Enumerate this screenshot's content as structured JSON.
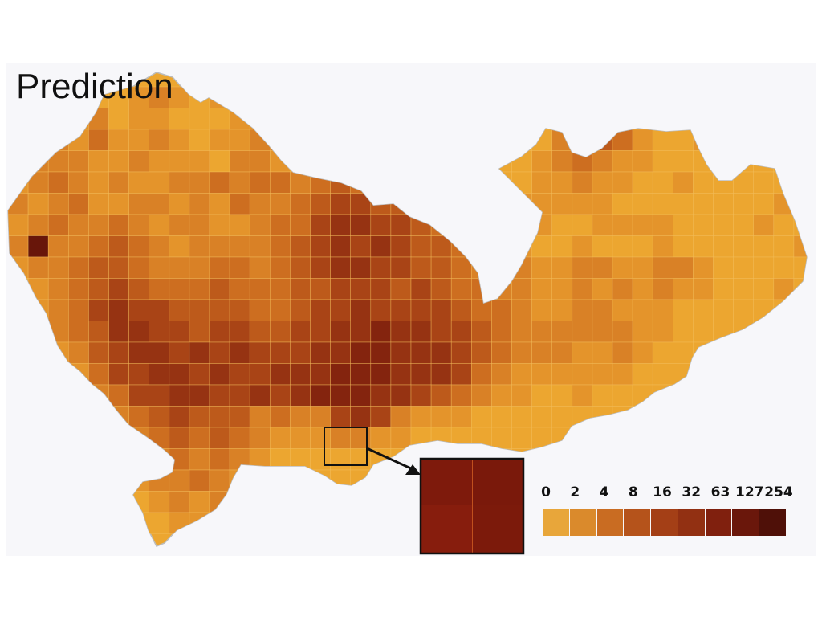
{
  "title": "Prediction",
  "colors": {
    "background": "#f7f7fa",
    "base": "#eca630",
    "grid": "#f0b94e",
    "coast": "#bcbcbc",
    "inset_border": "#111111"
  },
  "legend": {
    "labels": [
      "0",
      "2",
      "4",
      "8",
      "16",
      "32",
      "63",
      "127",
      "254"
    ],
    "colors": [
      "#e8a63a",
      "#da8a2c",
      "#c96c22",
      "#b5531b",
      "#a43f16",
      "#923012",
      "#80200e",
      "#6a170b",
      "#4f1008"
    ]
  },
  "inset": {
    "cells": [
      "#7e1a0c",
      "#7a190b",
      "#871d0d",
      "#7c1a0b"
    ]
  },
  "grid_levels": [
    [
      1,
      0,
      2,
      1,
      0,
      0,
      1,
      2,
      1,
      0,
      1,
      2,
      1,
      1,
      0,
      1,
      0,
      0,
      0,
      0,
      0,
      1,
      0,
      0,
      0,
      0,
      1,
      0,
      0,
      0,
      0,
      0,
      0,
      0,
      1,
      0,
      0,
      0,
      0,
      0,
      0
    ],
    [
      0,
      1,
      1,
      1,
      2,
      0,
      1,
      1,
      0,
      0,
      0,
      1,
      1,
      1,
      2,
      1,
      0,
      0,
      0,
      1,
      1,
      0,
      0,
      0,
      0,
      1,
      2,
      3,
      4,
      3,
      2,
      1,
      1,
      1,
      0,
      1,
      0,
      0,
      1,
      0,
      0
    ],
    [
      2,
      1,
      2,
      1,
      3,
      1,
      1,
      2,
      1,
      0,
      1,
      1,
      2,
      3,
      2,
      1,
      2,
      1,
      2,
      2,
      1,
      1,
      1,
      0,
      0,
      0,
      0,
      2,
      3,
      4,
      3,
      1,
      0,
      0,
      1,
      0,
      0,
      0,
      0,
      0,
      1
    ],
    [
      1,
      2,
      2,
      2,
      1,
      1,
      2,
      1,
      1,
      1,
      0,
      2,
      2,
      1,
      1,
      3,
      2,
      2,
      3,
      2,
      2,
      2,
      1,
      1,
      0,
      0,
      1,
      2,
      3,
      2,
      1,
      1,
      0,
      0,
      0,
      1,
      0,
      0,
      0,
      1,
      0
    ],
    [
      1,
      2,
      3,
      2,
      1,
      2,
      1,
      1,
      2,
      2,
      3,
      2,
      3,
      3,
      2,
      3,
      4,
      3,
      4,
      3,
      2,
      2,
      2,
      1,
      0,
      0,
      1,
      1,
      2,
      1,
      1,
      0,
      0,
      1,
      0,
      0,
      0,
      0,
      0,
      0,
      0
    ],
    [
      2,
      1,
      2,
      3,
      1,
      1,
      2,
      2,
      1,
      2,
      1,
      3,
      2,
      2,
      3,
      4,
      5,
      5,
      4,
      4,
      3,
      3,
      2,
      2,
      1,
      1,
      1,
      1,
      1,
      1,
      0,
      0,
      0,
      0,
      0,
      0,
      0,
      0,
      1,
      0,
      0
    ],
    [
      1,
      2,
      3,
      2,
      2,
      3,
      2,
      1,
      2,
      2,
      1,
      1,
      2,
      3,
      3,
      5,
      6,
      6,
      5,
      5,
      4,
      3,
      3,
      2,
      2,
      1,
      1,
      0,
      0,
      1,
      1,
      1,
      1,
      0,
      0,
      0,
      0,
      1,
      0,
      0,
      0
    ],
    [
      2,
      8,
      2,
      2,
      3,
      4,
      3,
      2,
      1,
      2,
      2,
      2,
      2,
      3,
      4,
      5,
      6,
      5,
      6,
      5,
      4,
      4,
      3,
      2,
      1,
      1,
      0,
      0,
      1,
      0,
      0,
      0,
      1,
      0,
      0,
      0,
      0,
      0,
      0,
      1,
      0
    ],
    [
      1,
      2,
      2,
      3,
      4,
      4,
      3,
      2,
      2,
      2,
      3,
      3,
      2,
      3,
      4,
      5,
      6,
      6,
      5,
      5,
      4,
      4,
      3,
      2,
      1,
      2,
      1,
      1,
      2,
      2,
      1,
      1,
      2,
      2,
      1,
      0,
      0,
      0,
      0,
      0,
      0
    ],
    [
      0,
      1,
      2,
      3,
      4,
      5,
      4,
      3,
      3,
      3,
      4,
      3,
      3,
      3,
      4,
      4,
      5,
      5,
      5,
      4,
      5,
      4,
      3,
      3,
      2,
      2,
      1,
      1,
      2,
      1,
      2,
      1,
      2,
      1,
      1,
      0,
      0,
      0,
      1,
      0,
      0
    ],
    [
      1,
      1,
      2,
      3,
      5,
      6,
      5,
      5,
      4,
      4,
      4,
      4,
      3,
      3,
      4,
      5,
      5,
      6,
      5,
      5,
      5,
      5,
      4,
      3,
      3,
      2,
      1,
      1,
      2,
      2,
      1,
      1,
      1,
      0,
      0,
      0,
      0,
      0,
      0,
      0,
      1
    ],
    [
      0,
      1,
      2,
      3,
      4,
      6,
      6,
      5,
      5,
      4,
      5,
      5,
      4,
      4,
      5,
      5,
      6,
      6,
      7,
      6,
      6,
      5,
      5,
      4,
      3,
      2,
      2,
      2,
      2,
      2,
      2,
      1,
      1,
      0,
      0,
      0,
      0,
      0,
      0,
      0,
      0
    ],
    [
      0,
      0,
      1,
      2,
      4,
      5,
      6,
      6,
      5,
      6,
      5,
      6,
      5,
      5,
      5,
      6,
      6,
      7,
      7,
      6,
      6,
      6,
      5,
      4,
      3,
      2,
      2,
      2,
      1,
      1,
      2,
      1,
      0,
      0,
      0,
      0,
      0,
      0,
      0,
      0,
      0
    ],
    [
      0,
      0,
      0,
      1,
      3,
      5,
      5,
      6,
      6,
      5,
      6,
      5,
      5,
      6,
      6,
      6,
      7,
      7,
      7,
      6,
      6,
      6,
      5,
      3,
      2,
      1,
      1,
      1,
      1,
      1,
      1,
      0,
      0,
      0,
      0,
      0,
      0,
      0,
      0,
      0,
      0
    ],
    [
      0,
      0,
      0,
      0,
      2,
      3,
      5,
      5,
      6,
      6,
      5,
      5,
      6,
      5,
      6,
      7,
      7,
      7,
      6,
      6,
      5,
      4,
      3,
      2,
      1,
      1,
      0,
      0,
      1,
      0,
      0,
      0,
      0,
      0,
      0,
      0,
      0,
      0,
      0,
      0,
      0
    ],
    [
      0,
      0,
      0,
      0,
      1,
      2,
      3,
      4,
      5,
      4,
      4,
      4,
      2,
      3,
      2,
      2,
      5,
      6,
      5,
      2,
      1,
      1,
      1,
      0,
      0,
      0,
      0,
      0,
      0,
      0,
      0,
      0,
      0,
      0,
      0,
      0,
      0,
      0,
      0,
      0,
      0
    ],
    [
      0,
      0,
      0,
      0,
      0,
      1,
      2,
      3,
      4,
      3,
      4,
      3,
      2,
      1,
      1,
      1,
      2,
      2,
      1,
      1,
      0,
      0,
      0,
      0,
      0,
      0,
      0,
      0,
      0,
      0,
      0,
      0,
      0,
      0,
      0,
      0,
      0,
      0,
      0,
      0,
      0
    ],
    [
      0,
      0,
      0,
      0,
      0,
      0,
      1,
      2,
      3,
      2,
      3,
      2,
      1,
      0,
      0,
      0,
      0,
      0,
      0,
      0,
      0,
      0,
      0,
      0,
      0,
      0,
      0,
      0,
      0,
      0,
      0,
      0,
      0,
      0,
      0,
      0,
      0,
      0,
      0,
      0,
      0
    ],
    [
      0,
      0,
      0,
      0,
      0,
      0,
      1,
      2,
      2,
      3,
      2,
      1,
      0,
      0,
      0,
      0,
      0,
      0,
      0,
      0,
      0,
      0,
      0,
      0,
      0,
      0,
      0,
      0,
      0,
      0,
      0,
      0,
      0,
      0,
      0,
      0,
      0,
      0,
      0,
      0,
      0
    ],
    [
      0,
      0,
      0,
      0,
      0,
      0,
      0,
      1,
      2,
      1,
      2,
      1,
      0,
      0,
      0,
      0,
      0,
      0,
      0,
      0,
      0,
      0,
      0,
      0,
      0,
      0,
      0,
      0,
      0,
      0,
      0,
      0,
      0,
      0,
      0,
      0,
      0,
      0,
      0,
      0,
      0
    ],
    [
      0,
      0,
      0,
      0,
      0,
      0,
      0,
      0,
      1,
      1,
      1,
      0,
      0,
      0,
      0,
      0,
      0,
      0,
      0,
      0,
      0,
      0,
      0,
      0,
      0,
      0,
      0,
      0,
      0,
      0,
      0,
      0,
      0,
      0,
      0,
      0,
      0,
      0,
      0,
      0,
      0
    ]
  ]
}
